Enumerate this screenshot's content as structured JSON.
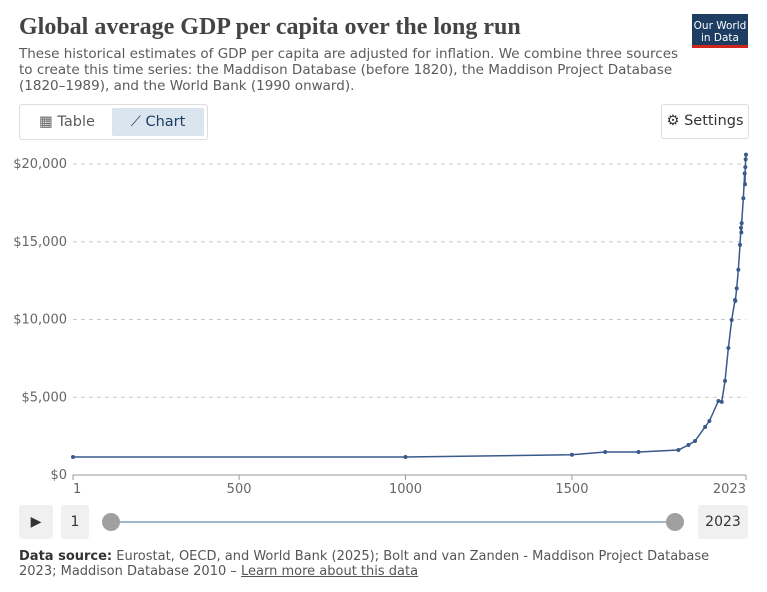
{
  "header": {
    "title": "Global average GDP per capita over the long run",
    "subtitle": "These historical estimates of GDP per capita are adjusted for inflation. We combine three sources to create this time series: the Maddison Database (before 1820), the Maddison Project Database (1820–1989), and the World Bank (1990 onward).",
    "logo": [
      "Our World",
      "in Data"
    ]
  },
  "tabs": [
    "Table",
    "Chart"
  ],
  "settings": "Settings",
  "chart_data": {
    "type": "line",
    "color": "#3a5a8c",
    "grid": true,
    "x": [
      1,
      1000,
      1500,
      1600,
      1700,
      1820,
      1850,
      1870,
      1900,
      1913,
      1940,
      1950,
      1960,
      1970,
      1980,
      1990,
      1991,
      1995,
      2000,
      2005,
      2008,
      2009,
      2010,
      2015,
      2019,
      2020,
      2021,
      2022,
      2023
    ],
    "values": [
      1160,
      1160,
      1300,
      1480,
      1480,
      1610,
      1930,
      2190,
      3090,
      3470,
      4760,
      4700,
      6050,
      8170,
      9970,
      11250,
      11200,
      12000,
      13200,
      14800,
      15900,
      15600,
      16200,
      17800,
      19400,
      18700,
      19800,
      20300,
      20600
    ],
    "xlim": [
      1,
      2023
    ],
    "xticks": [
      1,
      500,
      1000,
      1500,
      2023
    ],
    "ylim": [
      0,
      20000
    ],
    "yticks": [
      {
        "value": 0,
        "label": "$0"
      },
      {
        "value": 5000,
        "label": "$5,000"
      },
      {
        "value": 10000,
        "label": "$10,000"
      },
      {
        "value": 15000,
        "label": "$15,000"
      },
      {
        "value": 20000,
        "label": "$20,000"
      }
    ]
  },
  "timeline": {
    "start": "1",
    "end": "2023"
  },
  "footer": {
    "label": "Data source:",
    "text": "Eurostat, OECD, and World Bank (2025); Bolt and van Zanden - Maddison Project Database 2023; Maddison Database 2010 –",
    "link": "Learn more about this data"
  }
}
